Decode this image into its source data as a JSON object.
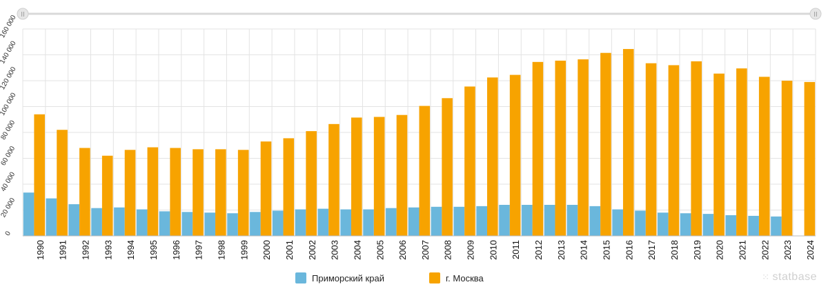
{
  "chart_data": {
    "type": "bar",
    "categories": [
      "1990",
      "1991",
      "1992",
      "1993",
      "1994",
      "1995",
      "1996",
      "1997",
      "1998",
      "1999",
      "2000",
      "2001",
      "2002",
      "2003",
      "2004",
      "2005",
      "2006",
      "2007",
      "2008",
      "2009",
      "2010",
      "2011",
      "2012",
      "2013",
      "2014",
      "2015",
      "2016",
      "2017",
      "2018",
      "2019",
      "2020",
      "2021",
      "2022",
      "2023",
      "2024"
    ],
    "series": [
      {
        "name": "Приморский край",
        "color": "#6ab7dc",
        "values": [
          33500,
          29000,
          24500,
          21500,
          22000,
          20500,
          19000,
          18500,
          18000,
          17500,
          18500,
          19500,
          20500,
          21000,
          20500,
          20500,
          21500,
          22000,
          22500,
          22500,
          23000,
          24000,
          24000,
          24000,
          24000,
          23000,
          20500,
          19500,
          18000,
          17500,
          17000,
          16000,
          15500,
          15000,
          null
        ]
      },
      {
        "name": "г. Москва",
        "color": "#f7a300",
        "values": [
          94000,
          82000,
          68000,
          62000,
          66500,
          68500,
          68000,
          67000,
          67000,
          66500,
          73000,
          75500,
          81000,
          86500,
          91500,
          92000,
          93500,
          100500,
          106500,
          115500,
          122500,
          124500,
          134500,
          135500,
          136500,
          141500,
          144500,
          133500,
          132000,
          135000,
          125500,
          129500,
          123000,
          120000,
          119000
        ]
      }
    ],
    "ylim": [
      0,
      160000
    ],
    "yticks": [
      0,
      20000,
      40000,
      60000,
      80000,
      100000,
      120000,
      140000,
      160000
    ],
    "ytick_labels": [
      "0",
      "20 000",
      "40 000",
      "60 000",
      "80 000",
      "100 000",
      "120 000",
      "140 000",
      "160 000"
    ],
    "grid": true,
    "legend_position": "bottom-center"
  },
  "colors": {
    "grid": "#e3e3e3",
    "axis": "#333333",
    "slider": "#d9d9d9"
  },
  "watermark": {
    "icon": "dots-icon",
    "text": "statbase"
  }
}
